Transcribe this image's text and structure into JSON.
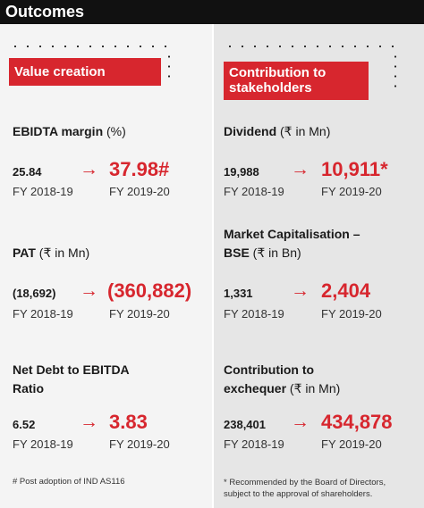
{
  "header": {
    "title": "Outcomes"
  },
  "left": {
    "section_label": "Value creation",
    "metrics": [
      {
        "title_bold": "EBIDTA margin",
        "title_rest": " (%)",
        "old": "25.84",
        "new": "37.98#",
        "fy_old": "FY 2018-19",
        "fy_new": "FY 2019-20"
      },
      {
        "title_bold": "PAT",
        "title_rest": " (₹ in Mn)",
        "old": "(18,692)",
        "new": "(360,882)",
        "fy_old": "FY 2018-19",
        "fy_new": "FY 2019-20"
      },
      {
        "title_bold": "Net Debt to EBITDA",
        "title_line2": "Ratio",
        "old": "6.52",
        "new": "3.83",
        "fy_old": "FY 2018-19",
        "fy_new": "FY 2019-20"
      }
    ],
    "footnote": "# Post adoption of IND AS116"
  },
  "right": {
    "section_label_line1": "Contribution to",
    "section_label_line2": "stakeholders",
    "metrics": [
      {
        "title_bold": "Dividend",
        "title_rest": " (₹ in Mn)",
        "old": "19,988",
        "new": "10,911*",
        "fy_old": "FY 2018-19",
        "fy_new": "FY 2019-20"
      },
      {
        "title_bold": "Market Capitalisation –",
        "title_line2_bold": "BSE",
        "title_line2_rest": " (₹ in Bn)",
        "old": "1,331",
        "new": "2,404",
        "fy_old": "FY 2018-19",
        "fy_new": "FY 2019-20"
      },
      {
        "title_bold": "Contribution to",
        "title_line2_bold": "exchequer",
        "title_line2_rest": " (₹ in Mn)",
        "old": "238,401",
        "new": "434,878",
        "fy_old": "FY 2018-19",
        "fy_new": "FY 2019-20"
      }
    ],
    "footnote_line1": "* Recommended by the Board of Directors,",
    "footnote_line2": "subject to the approval of shareholders."
  },
  "arrow_glyph": "→",
  "colors": {
    "accent": "#d7262e",
    "header_bg": "#111111"
  }
}
